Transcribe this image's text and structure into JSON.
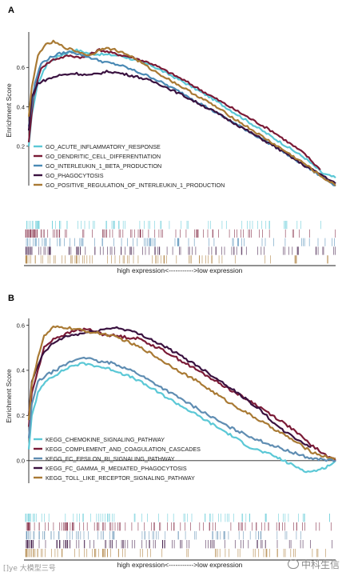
{
  "chart_data": [
    {
      "type": "line",
      "panel_label": "A",
      "ylabel": "Enrichment Score",
      "xlabel": "high expression<----------->low expression",
      "ylim": [
        0.0,
        0.78
      ],
      "y_ticks": [
        "0.2",
        "0.4",
        "0.6"
      ],
      "y_tick_values": [
        0.2,
        0.4,
        0.6
      ],
      "legend_position": "bottom-left",
      "series": [
        {
          "name": "GO_ACUTE_INFLAMMATORY_RESPONSE",
          "color": "#5BC8D6",
          "points": [
            [
              0,
              0.2
            ],
            [
              0.01,
              0.36
            ],
            [
              0.03,
              0.52
            ],
            [
              0.06,
              0.62
            ],
            [
              0.1,
              0.66
            ],
            [
              0.15,
              0.69
            ],
            [
              0.2,
              0.67
            ],
            [
              0.3,
              0.66
            ],
            [
              0.4,
              0.61
            ],
            [
              0.5,
              0.53
            ],
            [
              0.6,
              0.44
            ],
            [
              0.7,
              0.34
            ],
            [
              0.8,
              0.24
            ],
            [
              0.9,
              0.14
            ],
            [
              0.96,
              0.06
            ],
            [
              1.0,
              0.04
            ]
          ]
        },
        {
          "name": "GO_DENDRITIC_CELL_DIFFERENTIATION",
          "color": "#7A1A36",
          "points": [
            [
              0,
              0.22
            ],
            [
              0.015,
              0.45
            ],
            [
              0.04,
              0.6
            ],
            [
              0.08,
              0.64
            ],
            [
              0.13,
              0.66
            ],
            [
              0.18,
              0.65
            ],
            [
              0.23,
              0.69
            ],
            [
              0.28,
              0.67
            ],
            [
              0.34,
              0.65
            ],
            [
              0.4,
              0.62
            ],
            [
              0.5,
              0.54
            ],
            [
              0.6,
              0.45
            ],
            [
              0.7,
              0.36
            ],
            [
              0.8,
              0.27
            ],
            [
              0.9,
              0.16
            ],
            [
              0.95,
              0.08
            ]
          ]
        },
        {
          "name": "GO_INTERLEUKIN_1_BETA_PRODUCTION",
          "color": "#4B8AB5",
          "points": [
            [
              0,
              0.3
            ],
            [
              0.02,
              0.52
            ],
            [
              0.04,
              0.62
            ],
            [
              0.07,
              0.65
            ],
            [
              0.1,
              0.67
            ],
            [
              0.14,
              0.68
            ],
            [
              0.18,
              0.66
            ],
            [
              0.24,
              0.63
            ],
            [
              0.3,
              0.61
            ],
            [
              0.4,
              0.55
            ],
            [
              0.5,
              0.47
            ],
            [
              0.6,
              0.38
            ],
            [
              0.7,
              0.29
            ],
            [
              0.8,
              0.2
            ],
            [
              0.9,
              0.1
            ],
            [
              0.96,
              0.04
            ],
            [
              1.0,
              0.0
            ]
          ]
        },
        {
          "name": "GO_PHAGOCYTOSIS",
          "color": "#3A1240",
          "points": [
            [
              0,
              0.28
            ],
            [
              0.01,
              0.45
            ],
            [
              0.03,
              0.52
            ],
            [
              0.06,
              0.54
            ],
            [
              0.1,
              0.56
            ],
            [
              0.15,
              0.57
            ],
            [
              0.2,
              0.56
            ],
            [
              0.26,
              0.58
            ],
            [
              0.3,
              0.57
            ],
            [
              0.36,
              0.55
            ],
            [
              0.42,
              0.52
            ],
            [
              0.5,
              0.46
            ],
            [
              0.6,
              0.38
            ],
            [
              0.7,
              0.29
            ],
            [
              0.8,
              0.2
            ],
            [
              0.9,
              0.1
            ],
            [
              0.96,
              0.05
            ],
            [
              1.0,
              0.01
            ]
          ]
        },
        {
          "name": "GO_POSITIVE_REGULATION_OF_INTERLEUKIN_1_PRODUCTION",
          "color": "#A97A34",
          "points": [
            [
              0,
              0.35
            ],
            [
              0.01,
              0.5
            ],
            [
              0.03,
              0.66
            ],
            [
              0.05,
              0.71
            ],
            [
              0.08,
              0.73
            ],
            [
              0.12,
              0.7
            ],
            [
              0.16,
              0.68
            ],
            [
              0.2,
              0.66
            ],
            [
              0.24,
              0.7
            ],
            [
              0.28,
              0.69
            ],
            [
              0.33,
              0.66
            ],
            [
              0.4,
              0.59
            ],
            [
              0.5,
              0.5
            ],
            [
              0.6,
              0.41
            ],
            [
              0.7,
              0.31
            ],
            [
              0.8,
              0.21
            ],
            [
              0.9,
              0.11
            ],
            [
              0.95,
              0.05
            ],
            [
              1.0,
              0.0
            ]
          ]
        }
      ]
    },
    {
      "type": "line",
      "panel_label": "B",
      "ylabel": "Enrichment Score",
      "xlabel": "high expression<----------->low expression",
      "ylim": [
        -0.1,
        0.63
      ],
      "y_ticks": [
        "0.0",
        "0.2",
        "0.4",
        "0.6"
      ],
      "y_tick_values": [
        0.0,
        0.2,
        0.4,
        0.6
      ],
      "zero_line": true,
      "legend_position": "bottom-left",
      "series": [
        {
          "name": "KEGG_CHEMOKINE_SIGNALING_PATHWAY",
          "color": "#5BC8D6",
          "points": [
            [
              0,
              0.05
            ],
            [
              0.01,
              0.2
            ],
            [
              0.03,
              0.3
            ],
            [
              0.06,
              0.36
            ],
            [
              0.1,
              0.39
            ],
            [
              0.14,
              0.42
            ],
            [
              0.18,
              0.43
            ],
            [
              0.22,
              0.42
            ],
            [
              0.28,
              0.4
            ],
            [
              0.35,
              0.36
            ],
            [
              0.45,
              0.28
            ],
            [
              0.55,
              0.2
            ],
            [
              0.65,
              0.12
            ],
            [
              0.72,
              0.06
            ],
            [
              0.8,
              0.02
            ],
            [
              0.86,
              -0.02
            ],
            [
              0.91,
              -0.05
            ],
            [
              0.95,
              -0.04
            ],
            [
              0.98,
              -0.02
            ],
            [
              1.0,
              0.0
            ]
          ]
        },
        {
          "name": "KEGG_COMPLEMENT_AND_COAGULATION_CASCADES",
          "color": "#7A1A36",
          "points": [
            [
              0,
              0.15
            ],
            [
              0.01,
              0.3
            ],
            [
              0.03,
              0.4
            ],
            [
              0.05,
              0.5
            ],
            [
              0.08,
              0.54
            ],
            [
              0.12,
              0.56
            ],
            [
              0.16,
              0.58
            ],
            [
              0.2,
              0.58
            ],
            [
              0.24,
              0.56
            ],
            [
              0.3,
              0.55
            ],
            [
              0.36,
              0.54
            ],
            [
              0.45,
              0.48
            ],
            [
              0.55,
              0.4
            ],
            [
              0.65,
              0.32
            ],
            [
              0.75,
              0.24
            ],
            [
              0.85,
              0.15
            ],
            [
              0.92,
              0.07
            ],
            [
              0.96,
              0.03
            ],
            [
              1.0,
              0.0
            ]
          ]
        },
        {
          "name": "KEGG_FC_EPSILON_RI_SIGNALING_PATHWAY",
          "color": "#5F8DB2",
          "points": [
            [
              0,
              0.1
            ],
            [
              0.01,
              0.25
            ],
            [
              0.03,
              0.35
            ],
            [
              0.06,
              0.38
            ],
            [
              0.1,
              0.41
            ],
            [
              0.14,
              0.44
            ],
            [
              0.18,
              0.46
            ],
            [
              0.22,
              0.44
            ],
            [
              0.28,
              0.43
            ],
            [
              0.35,
              0.39
            ],
            [
              0.45,
              0.31
            ],
            [
              0.55,
              0.23
            ],
            [
              0.65,
              0.15
            ],
            [
              0.75,
              0.09
            ],
            [
              0.85,
              0.04
            ],
            [
              0.92,
              0.01
            ],
            [
              1.0,
              0.0
            ]
          ]
        },
        {
          "name": "KEGG_FC_GAMMA_R_MEDIATED_PHAGOCYTOSIS",
          "color": "#3A1240",
          "points": [
            [
              0,
              0.2
            ],
            [
              0.01,
              0.35
            ],
            [
              0.03,
              0.42
            ],
            [
              0.05,
              0.48
            ],
            [
              0.08,
              0.52
            ],
            [
              0.12,
              0.55
            ],
            [
              0.16,
              0.56
            ],
            [
              0.2,
              0.57
            ],
            [
              0.24,
              0.58
            ],
            [
              0.28,
              0.59
            ],
            [
              0.32,
              0.58
            ],
            [
              0.38,
              0.55
            ],
            [
              0.45,
              0.5
            ],
            [
              0.55,
              0.42
            ],
            [
              0.65,
              0.33
            ],
            [
              0.75,
              0.23
            ],
            [
              0.82,
              0.14
            ],
            [
              0.88,
              0.09
            ],
            [
              0.92,
              0.06
            ]
          ]
        },
        {
          "name": "KEGG_TOLL_LIKE_RECEPTOR_SIGNALING_PATHWAY",
          "color": "#A97A34",
          "points": [
            [
              0,
              0.18
            ],
            [
              0.01,
              0.34
            ],
            [
              0.03,
              0.46
            ],
            [
              0.05,
              0.55
            ],
            [
              0.08,
              0.59
            ],
            [
              0.12,
              0.59
            ],
            [
              0.16,
              0.58
            ],
            [
              0.2,
              0.57
            ],
            [
              0.25,
              0.56
            ],
            [
              0.3,
              0.54
            ],
            [
              0.38,
              0.49
            ],
            [
              0.45,
              0.43
            ],
            [
              0.55,
              0.35
            ],
            [
              0.65,
              0.26
            ],
            [
              0.75,
              0.18
            ],
            [
              0.85,
              0.1
            ],
            [
              0.92,
              0.04
            ],
            [
              0.96,
              0.02
            ],
            [
              1.0,
              0.01
            ]
          ]
        }
      ]
    }
  ],
  "watermarks": {
    "left": "[]уе 大模型三号",
    "right": "中科生信"
  }
}
